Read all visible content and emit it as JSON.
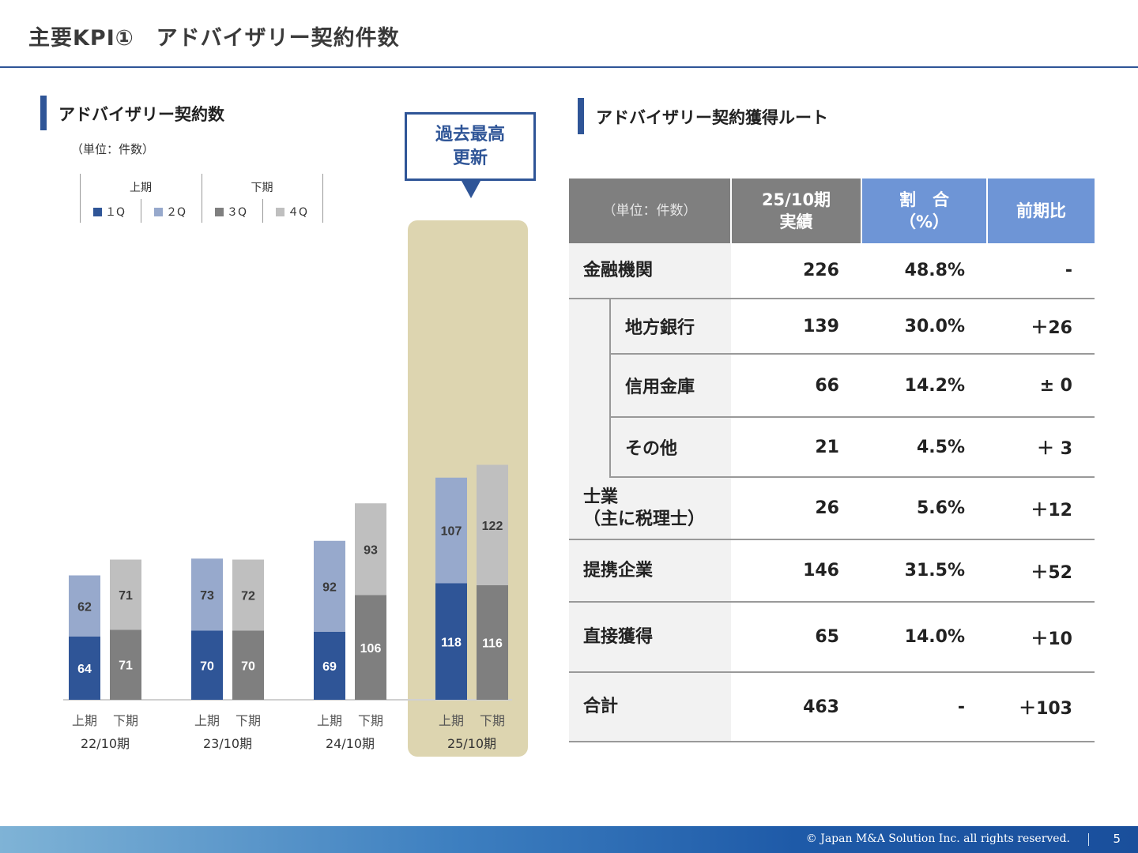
{
  "page": {
    "title": "主要KPI①　アドバイザリー契約件数",
    "number": "5",
    "copyright": "© Japan M&A Solution Inc. all rights reserved."
  },
  "left_section": {
    "title": "アドバイザリー契約数",
    "unit": "（単位：件数）",
    "callout_line1": "過去最高",
    "callout_line2": "更新",
    "legend": {
      "first_half": "上期",
      "second_half": "下期",
      "items": [
        "■１Q",
        "■２Q",
        "■３Q",
        "■４Q"
      ]
    }
  },
  "right_section": {
    "title": "アドバイザリー契約獲得ルート",
    "table": {
      "headers": [
        "（単位：件数）",
        "25/10期\n実績",
        "割　合\n（%）",
        "前期比"
      ],
      "rows": [
        {
          "label": "金融機関",
          "value": "226",
          "ratio": "48.8%",
          "diff": "-",
          "level": 0
        },
        {
          "label": "地方銀行",
          "value": "139",
          "ratio": "30.0%",
          "diff": "＋26",
          "level": 1
        },
        {
          "label": "信用金庫",
          "value": "66",
          "ratio": "14.2%",
          "diff": "± 0",
          "level": 1
        },
        {
          "label": "その他",
          "value": "21",
          "ratio": "4.5%",
          "diff": "＋ 3",
          "level": 1
        },
        {
          "label": "士業\n（主に税理士）",
          "value": "26",
          "ratio": "5.6%",
          "diff": "＋12",
          "level": 0
        },
        {
          "label": "提携企業",
          "value": "146",
          "ratio": "31.5%",
          "diff": "＋52",
          "level": 0
        },
        {
          "label": "直接獲得",
          "value": "65",
          "ratio": "14.0%",
          "diff": "＋10",
          "level": 0
        },
        {
          "label": "合計",
          "value": "463",
          "ratio": "-",
          "diff": "＋103",
          "level": 0
        }
      ]
    }
  },
  "chart_data": {
    "type": "bar",
    "stacked": true,
    "periods": [
      "22/10期",
      "23/10期",
      "24/10期",
      "25/10期"
    ],
    "bar_labels": [
      "上期",
      "下期"
    ],
    "series": [
      {
        "name": "１Q",
        "color": "#2f5597",
        "values": [
          64,
          70,
          69,
          118
        ],
        "half": "上期"
      },
      {
        "name": "２Q",
        "color": "#97a9cc",
        "values": [
          62,
          73,
          92,
          107
        ],
        "half": "上期"
      },
      {
        "name": "３Q",
        "color": "#7f7f7f",
        "values": [
          71,
          70,
          106,
          116
        ],
        "half": "下期"
      },
      {
        "name": "４Q",
        "color": "#bfbfbf",
        "values": [
          71,
          72,
          93,
          122
        ],
        "half": "下期"
      }
    ],
    "highlight_period": "25/10期",
    "grid": false
  }
}
